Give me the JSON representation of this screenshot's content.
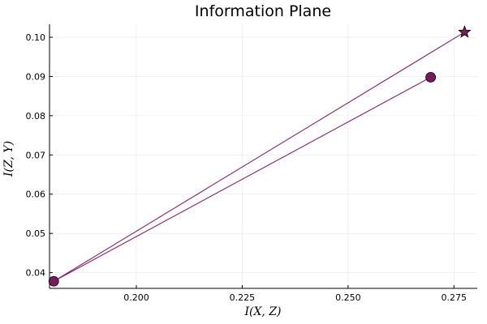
{
  "chart_data": {
    "type": "line",
    "title": "Information Plane",
    "xlabel": "I(X, Z)",
    "ylabel": "I(Z, Y)",
    "xlim": [
      0.1795,
      0.2805
    ],
    "ylim": [
      0.036,
      0.1033
    ],
    "x_ticks": [
      0.2,
      0.225,
      0.25,
      0.275
    ],
    "x_tick_labels": [
      "0.200",
      "0.225",
      "0.250",
      "0.275"
    ],
    "y_ticks": [
      0.04,
      0.05,
      0.06,
      0.07,
      0.08,
      0.09,
      0.1
    ],
    "y_tick_labels": [
      "0.04",
      "0.05",
      "0.06",
      "0.07",
      "0.08",
      "0.09",
      "0.10"
    ],
    "grid": true,
    "legend": "none",
    "series": [
      {
        "color": "#8a1f6f",
        "marker_color": "#7a1a5e",
        "points": [
          {
            "x": 0.2775,
            "y": 0.1013,
            "marker": "star"
          },
          {
            "x": 0.1805,
            "y": 0.0378,
            "marker": "circle"
          },
          {
            "x": 0.2695,
            "y": 0.0898,
            "marker": "circle"
          }
        ]
      }
    ]
  }
}
